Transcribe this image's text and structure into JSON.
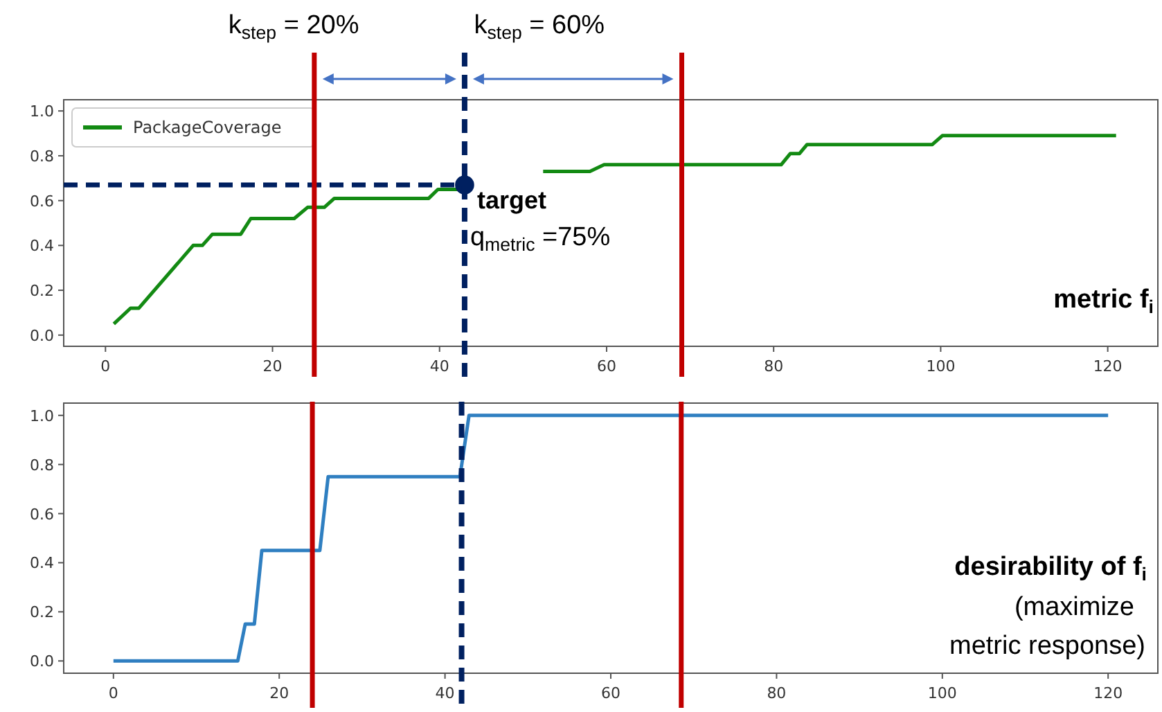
{
  "chart_data": [
    {
      "type": "line",
      "xlim": [
        -5,
        126
      ],
      "ylim": [
        -0.05,
        1.05
      ],
      "xticks": [
        0,
        20,
        40,
        60,
        80,
        100,
        120
      ],
      "yticks": [
        {
          "value": 0,
          "label": "0.0"
        },
        {
          "value": 0.2,
          "label": "0.2"
        },
        {
          "value": 0.4,
          "label": "0.4"
        },
        {
          "value": 0.6,
          "label": "0.6"
        },
        {
          "value": 0.8,
          "label": "0.8"
        },
        {
          "value": 1,
          "label": "1.0"
        }
      ],
      "grid": false,
      "legend": "top left",
      "series": [
        {
          "name": "PackageCoverage",
          "color": "#138a13",
          "x": [
            1,
            3,
            4,
            10.5,
            11.6,
            12.8,
            16.2,
            17.4,
            22.6,
            24.2,
            26.2,
            27.4,
            38.7,
            39.8,
            42.6,
            47,
            52.4,
            58,
            59.7,
            80.9,
            82,
            83.1,
            84,
            99,
            100.2,
            121
          ],
          "values": [
            0.05,
            0.12,
            0.12,
            0.4,
            0.4,
            0.45,
            0.45,
            0.52,
            0.52,
            0.57,
            0.57,
            0.61,
            0.61,
            0.65,
            0.65,
            null,
            0.73,
            0.73,
            0.76,
            0.76,
            0.81,
            0.81,
            0.85,
            0.85,
            0.89,
            0.89
          ]
        },
        {
          "type": "line",
          "color": "#002060",
          "line_style": "dashed",
          "x": [
            -5,
            43
          ],
          "values": [
            0.67,
            0.67
          ]
        },
        {
          "type": "scatter",
          "color": "#002060",
          "marker": "circle",
          "x": [
            43
          ],
          "values": [
            0.67
          ]
        }
      ],
      "ref_lines": [
        {
          "axis": "x",
          "value": 25,
          "color": "#c00000"
        },
        {
          "axis": "x",
          "value": 43,
          "color": "#002060",
          "line_style": "dashed"
        },
        {
          "axis": "x",
          "value": 69,
          "color": "#c00000"
        }
      ],
      "annotations": [
        "k$_{step}$ = 20%",
        "k$_{step}$ = 60%",
        {
          "text": "target",
          "x": 43,
          "y": 0.67
        },
        "q$_{metric}$ =75%",
        "metric f$_{i}$"
      ]
    },
    {
      "type": "line",
      "xlim": [
        -6,
        126
      ],
      "ylim": [
        -0.05,
        1.05
      ],
      "xticks": [
        0,
        20,
        40,
        60,
        80,
        100,
        120
      ],
      "yticks": [
        {
          "value": 0,
          "label": "0.0"
        },
        {
          "value": 0.2,
          "label": "0.2"
        },
        {
          "value": 0.4,
          "label": "0.4"
        },
        {
          "value": 0.6,
          "label": "0.6"
        },
        {
          "value": 0.8,
          "label": "0.8"
        },
        {
          "value": 1,
          "label": "1.0"
        }
      ],
      "grid": false,
      "series": [
        {
          "color": "#2f7fc1",
          "x": [
            0,
            15,
            15.9,
            17,
            17.9,
            24.9,
            25.9,
            41.8,
            42.9,
            120
          ],
          "values": [
            0,
            0,
            0.15,
            0.15,
            0.45,
            0.45,
            0.75,
            0.75,
            1,
            1
          ]
        }
      ],
      "ref_lines": [
        {
          "axis": "x",
          "value": 24,
          "color": "#c00000"
        },
        {
          "axis": "x",
          "value": 42,
          "color": "#002060",
          "line_style": "dashed"
        },
        {
          "axis": "x",
          "value": 68.5,
          "color": "#c00000"
        }
      ],
      "annotations": [
        "desirability of f$_{i}$",
        "(maximize",
        "metric response)"
      ]
    }
  ]
}
